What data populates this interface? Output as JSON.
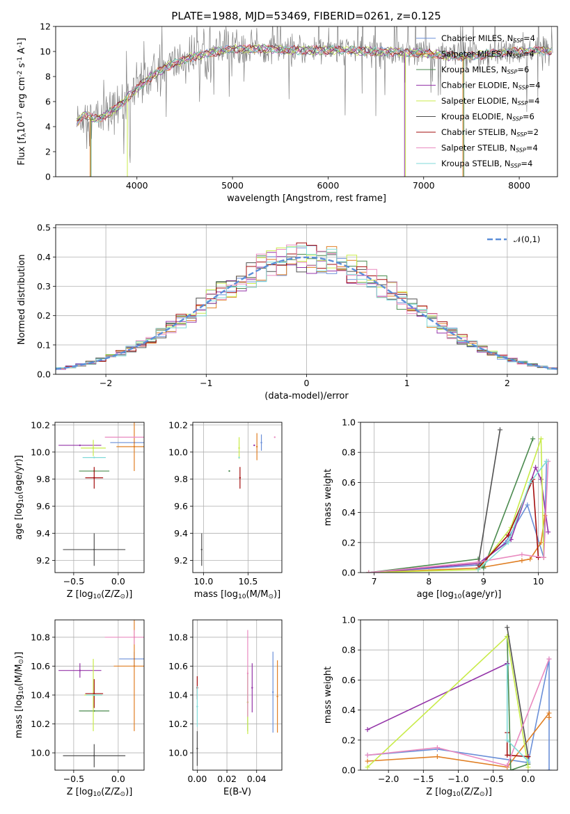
{
  "figure_title": "PLATE=1988, MJD=53469, FIBERID=0261, z=0.125",
  "model_colors": [
    "#6a8fd8",
    "#e07f24",
    "#4a8a4e",
    "#9434a8",
    "#c8eb48",
    "#505050",
    "#a30c0c",
    "#e98ac0",
    "#7fdad8"
  ],
  "chart_data": [
    {
      "id": "spectrum",
      "type": "line",
      "xlabel": "wavelength [Angstrom, rest frame]",
      "ylabel": "Flux [f$_{\\lambda}$10$^{-17}$ erg cm$^{-2}$ s$^{-1}$ A$^{-1}$]",
      "xlim": [
        3150,
        8400
      ],
      "ylim": [
        0,
        12
      ],
      "xticks": [
        4000,
        5000,
        6000,
        7000,
        8000
      ],
      "yticks": [
        0,
        2,
        4,
        6,
        8,
        10,
        12
      ],
      "data_color": "#808080",
      "data_node_x": [
        3370,
        3450,
        3550,
        3650,
        3750,
        3850,
        3950,
        4050,
        4150,
        4250,
        4350,
        4450,
        4550,
        4700,
        4850,
        5000,
        5200,
        5400,
        5600,
        5800,
        6000,
        6200,
        6400,
        6600,
        6800,
        7000,
        7200,
        7400,
        7600,
        7800,
        8000,
        8200,
        8350
      ],
      "data_node_y": [
        4.3,
        5.0,
        4.6,
        4.8,
        5.3,
        5.9,
        6.7,
        7.4,
        8.0,
        8.5,
        8.9,
        9.2,
        9.5,
        9.8,
        10.0,
        10.2,
        10.2,
        10.2,
        10.1,
        10.1,
        10.1,
        10.1,
        10.0,
        10.0,
        9.9,
        9.9,
        9.7,
        9.6,
        9.7,
        9.9,
        10.0,
        10.1,
        10.0
      ],
      "series": [
        {
          "name": "Chabrier MILES, N$_{SSP}$=4"
        },
        {
          "name": "Salpeter MILES, N$_{SSP}$=4"
        },
        {
          "name": "Kroupa MILES, N$_{SSP}$=6"
        },
        {
          "name": "Chabrier ELODIE, N$_{SSP}$=4"
        },
        {
          "name": "Salpeter ELODIE, N$_{SSP}$=4"
        },
        {
          "name": "Kroupa ELODIE, N$_{SSP}$=6"
        },
        {
          "name": "Chabrier STELIB, N$_{SSP}$=2"
        },
        {
          "name": "Salpeter STELIB, N$_{SSP}$=4"
        },
        {
          "name": "Kroupa STELIB, N$_{SSP}$=4"
        }
      ],
      "legend_loc": "right"
    },
    {
      "id": "residuals",
      "type": "histogram",
      "xlabel": "(data-model)/error",
      "ylabel": "Normed distribution",
      "xlim": [
        -2.5,
        2.5
      ],
      "ylim": [
        0,
        0.51
      ],
      "xticks": [
        -2,
        -1,
        0,
        1,
        2
      ],
      "yticks": [
        0.0,
        0.1,
        0.2,
        0.3,
        0.4,
        0.5
      ],
      "bin_start": -2.5,
      "bin_width": 0.1,
      "reference": {
        "label": "$\\mathcal{N}(0,1)$",
        "mean": 0,
        "sigma": 1,
        "color": "#5b8ed8"
      },
      "legend_loc": "top-right",
      "grid": true
    },
    {
      "id": "age_vs_Z",
      "type": "errorbar",
      "xlabel": "Z [log$_{10}$($Z/Z_\\odot$)]",
      "ylabel": "age  [log$_{10}$($age/yr$)]",
      "xlim": [
        -0.71,
        0.29
      ],
      "ylim": [
        9.11,
        10.22
      ],
      "xticks": [
        -0.5,
        0.0
      ],
      "yticks": [
        9.2,
        9.4,
        9.6,
        9.8,
        10.0,
        10.2
      ],
      "points": [
        {
          "x": 0.18,
          "xerr": 0.27,
          "y": 10.07,
          "yerr": 0.0
        },
        {
          "x": 0.18,
          "xerr": 0.2,
          "y": 10.04,
          "yerr": 0.18
        },
        {
          "x": -0.27,
          "xerr": 0.17,
          "y": 9.86,
          "yerr": 0.0
        },
        {
          "x": -0.43,
          "xerr": 0.24,
          "y": 10.05,
          "yerr": 0.0
        },
        {
          "x": -0.28,
          "xerr": 0.14,
          "y": 10.03,
          "yerr": 0.06
        },
        {
          "x": -0.27,
          "xerr": 0.35,
          "y": 9.28,
          "yerr": 0.12
        },
        {
          "x": -0.27,
          "xerr": 0.1,
          "y": 9.81,
          "yerr": 0.08
        },
        {
          "x": 0.18,
          "xerr": 0.33,
          "y": 10.11,
          "yerr": 0.0
        },
        {
          "x": -0.27,
          "xerr": 0.13,
          "y": 9.96,
          "yerr": 0.0
        }
      ],
      "grid": true
    },
    {
      "id": "age_vs_mass",
      "type": "errorbar",
      "xlabel": "mass [log$_{10}$($M/M_\\odot$)]",
      "ylabel": "",
      "xlim": [
        9.88,
        10.88
      ],
      "ylim": [
        9.11,
        10.22
      ],
      "xticks": [
        10.0,
        10.5
      ],
      "yticks": [
        9.2,
        9.4,
        9.6,
        9.8,
        10.0,
        10.2
      ],
      "points": [
        {
          "x": 10.65,
          "xerr": 0.0,
          "y": 10.07,
          "yerr": 0.06
        },
        {
          "x": 10.6,
          "xerr": 0.0,
          "y": 10.04,
          "yerr": 0.1
        },
        {
          "x": 10.29,
          "xerr": 0.0,
          "y": 9.86,
          "yerr": 0.0
        },
        {
          "x": 10.57,
          "xerr": 0.0,
          "y": 10.05,
          "yerr": 0.0
        },
        {
          "x": 10.4,
          "xerr": 0.0,
          "y": 10.03,
          "yerr": 0.08
        },
        {
          "x": 9.98,
          "xerr": 0.0,
          "y": 9.28,
          "yerr": 0.12
        },
        {
          "x": 10.41,
          "xerr": 0.0,
          "y": 9.81,
          "yerr": 0.08
        },
        {
          "x": 10.8,
          "xerr": 0.0,
          "y": 10.11,
          "yerr": 0.0
        },
        {
          "x": 10.4,
          "xerr": 0.0,
          "y": 9.96,
          "yerr": 0.0
        }
      ],
      "grid": true
    },
    {
      "id": "weight_vs_age",
      "type": "line",
      "xlabel": "age  [log$_{10}$($age/yr$)]",
      "ylabel": "mass weight",
      "xlim": [
        6.75,
        10.35
      ],
      "ylim": [
        0,
        1.0
      ],
      "xticks": [
        7,
        8,
        9,
        10
      ],
      "yticks": [
        0.0,
        0.2,
        0.4,
        0.6,
        0.8,
        1.0
      ],
      "series": [
        {
          "x": [
            6.9,
            8.9,
            9.4,
            9.8,
            10.1,
            10.15
          ],
          "y": [
            0.0,
            0.05,
            0.2,
            0.45,
            0.1,
            0.74
          ]
        },
        {
          "x": [
            6.9,
            8.9,
            9.7,
            9.85,
            10.05,
            10.12
          ],
          "y": [
            0.0,
            0.03,
            0.08,
            0.09,
            0.2,
            0.38
          ]
        },
        {
          "x": [
            6.9,
            8.9,
            9.0,
            9.9
          ],
          "y": [
            0.0,
            0.09,
            0.03,
            0.89
          ]
        },
        {
          "x": [
            6.9,
            8.9,
            9.5,
            9.95,
            10.05,
            10.18
          ],
          "y": [
            0.0,
            0.06,
            0.22,
            0.7,
            0.62,
            0.27
          ]
        },
        {
          "x": [
            6.9,
            8.9,
            9.5,
            10.05,
            10.1
          ],
          "y": [
            0.0,
            0.02,
            0.3,
            0.89,
            0.1
          ]
        },
        {
          "x": [
            8.9,
            9.3
          ],
          "y": [
            0.05,
            0.95
          ]
        },
        {
          "x": [
            8.9,
            9.45,
            9.9,
            10.0
          ],
          "y": [
            0.03,
            0.25,
            0.62,
            0.1
          ]
        },
        {
          "x": [
            6.9,
            8.9,
            9.7,
            10.1,
            10.18
          ],
          "y": [
            0.0,
            0.07,
            0.12,
            0.1,
            0.74
          ]
        },
        {
          "x": [
            8.9,
            9.45,
            9.85,
            10.15
          ],
          "y": [
            0.02,
            0.2,
            0.6,
            0.74
          ]
        }
      ],
      "grid": true
    },
    {
      "id": "mass_vs_Z",
      "type": "errorbar",
      "xlabel": "Z [log$_{10}$($Z/Z_\\odot$)]",
      "ylabel": "mass [log$_{10}$($M/M_\\odot$)]",
      "xlim": [
        -0.71,
        0.29
      ],
      "ylim": [
        9.88,
        10.92
      ],
      "xticks": [
        -0.5,
        0.0
      ],
      "yticks": [
        10.0,
        10.2,
        10.4,
        10.6,
        10.8
      ],
      "points": [
        {
          "x": 0.18,
          "xerr": 0.17,
          "y": 10.65,
          "yerr": 0.05
        },
        {
          "x": 0.18,
          "xerr": 0.23,
          "y": 10.6,
          "yerr": 0.45
        },
        {
          "x": -0.27,
          "xerr": 0.17,
          "y": 10.29,
          "yerr": 0.0
        },
        {
          "x": -0.43,
          "xerr": 0.24,
          "y": 10.57,
          "yerr": 0.05
        },
        {
          "x": -0.28,
          "xerr": 0.1,
          "y": 10.4,
          "yerr": 0.25
        },
        {
          "x": -0.27,
          "xerr": 0.35,
          "y": 9.98,
          "yerr": 0.08
        },
        {
          "x": -0.27,
          "xerr": 0.1,
          "y": 10.41,
          "yerr": 0.1
        },
        {
          "x": 0.18,
          "xerr": 0.33,
          "y": 10.8,
          "yerr": 0.05
        },
        {
          "x": -0.27,
          "xerr": 0.09,
          "y": 10.4,
          "yerr": 0.0
        }
      ],
      "grid": true
    },
    {
      "id": "mass_vs_EBV",
      "type": "errorbar",
      "xlabel": "E(B-V)",
      "ylabel": "",
      "xlim": [
        -0.003,
        0.057
      ],
      "ylim": [
        9.88,
        10.92
      ],
      "xticks": [
        0.0,
        0.02,
        0.04
      ],
      "yticks": [
        10.0,
        10.2,
        10.4,
        10.6,
        10.8
      ],
      "points": [
        {
          "x": 0.051,
          "xerr": 0.0,
          "y": 10.42,
          "yerr": 0.28
        },
        {
          "x": 0.054,
          "xerr": 0.0,
          "y": 10.39,
          "yerr": 0.25
        },
        {
          "x": 0.034,
          "xerr": 0.0,
          "y": 10.35,
          "yerr": 0.2
        },
        {
          "x": 0.037,
          "xerr": 0.0,
          "y": 10.45,
          "yerr": 0.17
        },
        {
          "x": 0.034,
          "xerr": 0.0,
          "y": 10.35,
          "yerr": 0.22
        },
        {
          "x": 0.0,
          "xerr": 0.0,
          "y": 10.03,
          "yerr": 0.12
        },
        {
          "x": 0.0,
          "xerr": 0.0,
          "y": 10.45,
          "yerr": 0.08
        },
        {
          "x": 0.034,
          "xerr": 0.0,
          "y": 10.55,
          "yerr": 0.3
        },
        {
          "x": 0.0,
          "xerr": 0.0,
          "y": 10.32,
          "yerr": 0.14
        }
      ],
      "grid": true
    },
    {
      "id": "weight_vs_Z",
      "type": "line",
      "xlabel": "Z [log$_{10}$($Z/Z_\\odot$)]",
      "ylabel": "mass weight",
      "xlim": [
        -2.4,
        0.42
      ],
      "ylim": [
        0,
        1.0
      ],
      "xticks": [
        -2.0,
        -1.5,
        -1.0,
        -0.5,
        0.0
      ],
      "yticks": [
        0.0,
        0.2,
        0.4,
        0.6,
        0.8,
        1.0
      ],
      "series": [
        {
          "x": [
            -2.3,
            -1.3,
            0.0,
            0.3,
            0.3
          ],
          "y": [
            0.1,
            0.14,
            0.05,
            0.74,
            0.0
          ]
        },
        {
          "x": [
            -2.3,
            -1.3,
            -0.3,
            0.3,
            0.3
          ],
          "y": [
            0.06,
            0.09,
            0.02,
            0.38,
            0.35
          ]
        },
        {
          "x": [
            -0.3,
            -0.25,
            0.0
          ],
          "y": [
            0.89,
            0.0,
            0.04
          ]
        },
        {
          "x": [
            -2.3,
            -0.3
          ],
          "y": [
            0.27,
            0.71
          ]
        },
        {
          "x": [
            -2.3,
            -0.3,
            0.0
          ],
          "y": [
            0.02,
            0.89,
            0.02
          ]
        },
        {
          "x": [
            -0.3,
            0.0
          ],
          "y": [
            0.95,
            0.09
          ]
        },
        {
          "x": [
            -0.3,
            -0.3,
            0.0
          ],
          "y": [
            0.25,
            0.1,
            0.09
          ]
        },
        {
          "x": [
            -2.3,
            -1.3,
            -0.3,
            0.3
          ],
          "y": [
            0.1,
            0.15,
            0.03,
            0.74
          ]
        },
        {
          "x": [
            -0.3,
            -0.3,
            0.0
          ],
          "y": [
            0.7,
            0.2,
            0.06
          ]
        }
      ],
      "grid": true
    }
  ]
}
